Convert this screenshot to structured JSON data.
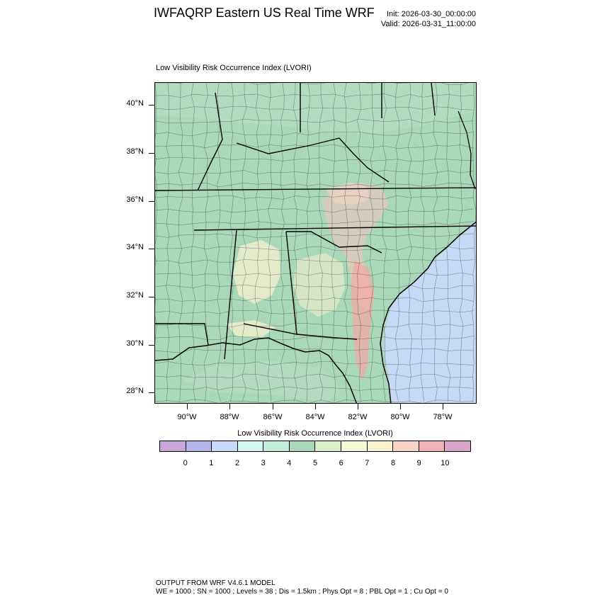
{
  "header": {
    "title": "IWFAQRP Eastern US Real Time WRF",
    "init": "Init: 2026-03-30_00:00:00",
    "valid": "Valid: 2026-03-31_11:00:00"
  },
  "map": {
    "subtitle": "Low Visibility Risk Occurrence Index   (LVORI)",
    "lat_labels": [
      "40°N",
      "38°N",
      "36°N",
      "34°N",
      "32°N",
      "30°N",
      "28°N"
    ],
    "lon_labels": [
      "90°W",
      "88°W",
      "86°W",
      "84°W",
      "82°W",
      "80°W",
      "78°W"
    ],
    "colors": {
      "land_base": "#a9d7b9",
      "land_light": "#c4e7d2",
      "ocean_gulf": "#a9d7b9",
      "ocean_atlantic": "#c6d9f7",
      "hotspot_pink": "#f6c5bd",
      "hotspot_yellow": "#fbf2cf",
      "county_line": "#000000"
    }
  },
  "colorbar": {
    "title": "Low Visibility Risk Occurrence Index  (LVORI)",
    "labels": [
      "0",
      "1",
      "2",
      "3",
      "4",
      "5",
      "6",
      "7",
      "8",
      "9",
      "10"
    ],
    "colors": [
      "#c9a6dc",
      "#b3b5ea",
      "#c7dafa",
      "#d3f6f3",
      "#c3ecda",
      "#a8d7bb",
      "#d9efc8",
      "#f3f8d5",
      "#fbf2cf",
      "#f8d3c4",
      "#eeb2b7",
      "#d9a5c8"
    ]
  },
  "footer": {
    "line1": "OUTPUT FROM WRF V4.6.1 MODEL",
    "line2": "WE = 1000 ; SN = 1000 ; Levels = 38 ; Dis = 1.5km ; Phys Opt = 8 ; PBL Opt = 1 ; Cu Opt = 0"
  }
}
